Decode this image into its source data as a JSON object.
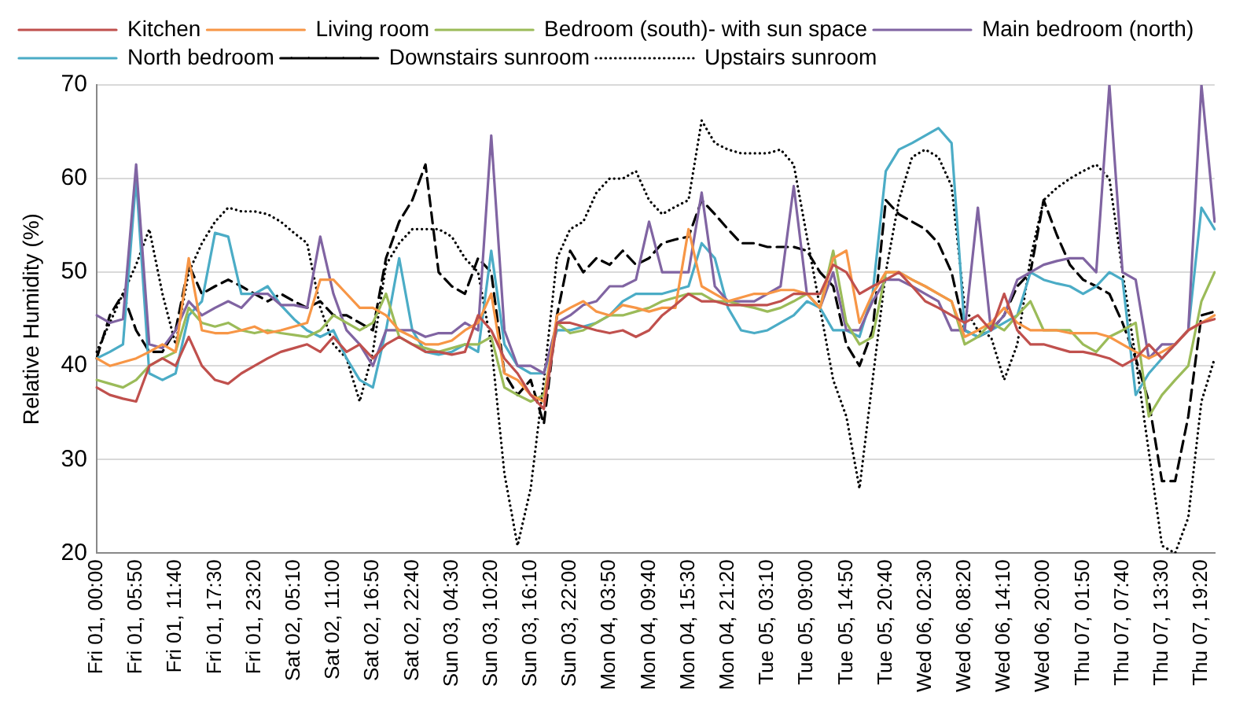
{
  "chart_data": {
    "type": "line",
    "ylabel": "Relative Humidity (%)",
    "ylim": [
      20,
      70
    ],
    "yticks": [
      20,
      30,
      40,
      50,
      60,
      70
    ],
    "grid": "y",
    "legend": "top",
    "marker": "none",
    "categories": [
      "Fri 01, 00:00",
      null,
      null,
      "Fri 01, 05:50",
      null,
      null,
      "Fri 01, 11:40",
      null,
      null,
      "Fri 01, 17:30",
      null,
      null,
      "Fri 01, 23:20",
      null,
      null,
      "Sat 02, 05:10",
      null,
      null,
      "Sat 02, 11:00",
      null,
      null,
      "Sat 02, 16:50",
      null,
      null,
      "Sat 02, 22:40",
      null,
      null,
      "Sun 03, 04:30",
      null,
      null,
      "Sun 03, 10:20",
      null,
      null,
      "Sun 03, 16:10",
      null,
      null,
      "Sun 03, 22:00",
      null,
      null,
      "Mon 04, 03:50",
      null,
      null,
      "Mon 04, 09:40",
      null,
      null,
      "Mon 04, 15:30",
      null,
      null,
      "Mon 04, 21:20",
      null,
      null,
      "Tue 05, 03:10",
      null,
      null,
      "Tue 05, 09:00",
      null,
      null,
      "Tue 05, 14:50",
      null,
      null,
      "Tue 05, 20:40",
      null,
      null,
      "Wed 06, 02:30",
      null,
      null,
      "Wed 06, 08:20",
      null,
      null,
      "Wed 06, 14:10",
      null,
      null,
      "Wed 06, 20:00",
      null,
      null,
      "Thu 07, 01:50",
      null,
      null,
      "Thu 07, 07:40",
      null,
      null,
      "Thu 07, 13:30",
      null,
      null,
      "Thu 07, 19:20",
      null
    ],
    "series": [
      {
        "name": "Kitchen",
        "color": "#c0504d",
        "values": [
          37.7,
          36.9,
          36.5,
          36.2,
          40,
          40.8,
          40,
          43.1,
          40,
          38.5,
          38.1,
          39.2,
          40,
          40.8,
          41.5,
          41.9,
          42.3,
          41.5,
          43.1,
          41.5,
          42.3,
          40.8,
          42.3,
          43.1,
          42.3,
          41.5,
          41.5,
          41.2,
          41.5,
          45.4,
          43.8,
          40.8,
          39.2,
          36.9,
          35.4,
          44.6,
          44.6,
          44.2,
          43.8,
          43.5,
          43.8,
          43.1,
          43.8,
          45.4,
          46.5,
          47.7,
          46.9,
          46.9,
          46.5,
          46.5,
          46.5,
          46.5,
          46.9,
          47.7,
          47.7,
          47.7,
          50.8,
          50,
          47.7,
          48.5,
          49.2,
          50,
          48.5,
          46.9,
          46.2,
          45.4,
          44.6,
          45.4,
          43.8,
          47.7,
          43.8,
          42.3,
          42.3,
          41.9,
          41.5,
          41.5,
          41.2,
          40.8,
          40,
          40.8,
          42.3,
          40.8,
          42.3,
          43.8,
          44.6,
          45
        ]
      },
      {
        "name": "Living room",
        "color": "#f79646",
        "values": [
          40.8,
          40,
          40.4,
          40.8,
          41.5,
          42.3,
          41.5,
          51.5,
          43.8,
          43.5,
          43.5,
          43.8,
          44.2,
          43.5,
          43.8,
          44.2,
          44.6,
          49.2,
          49.2,
          47.7,
          46.2,
          46.2,
          45.4,
          43.8,
          43.1,
          42.3,
          42.3,
          42.7,
          43.8,
          44.6,
          47.7,
          39.2,
          38.5,
          36.9,
          36.2,
          45.4,
          46.2,
          46.9,
          45.8,
          45.4,
          46.5,
          46.2,
          45.8,
          46.2,
          46.2,
          54.6,
          48.5,
          47.7,
          46.9,
          47.3,
          47.7,
          47.7,
          48.1,
          48.1,
          47.7,
          46.2,
          51.5,
          52.3,
          44.6,
          47.7,
          50,
          50,
          49.2,
          48.5,
          47.7,
          46.9,
          43.1,
          43.8,
          44.6,
          46.2,
          44.6,
          43.8,
          43.8,
          43.8,
          43.5,
          43.5,
          43.5,
          43.1,
          42.3,
          41.5,
          40.8,
          41.5,
          42.3,
          43.8,
          44.6,
          45.4
        ]
      },
      {
        "name": "Bedroom (south)- with sun space",
        "color": "#9bbb59",
        "values": [
          38.5,
          38.1,
          37.7,
          38.5,
          40,
          40.8,
          41.5,
          46.2,
          44.6,
          44.2,
          44.6,
          43.8,
          43.5,
          43.8,
          43.5,
          43.3,
          43.1,
          43.8,
          45.4,
          44.6,
          43.8,
          44.6,
          47.7,
          43.1,
          42.3,
          41.9,
          41.5,
          41.9,
          42.3,
          42.3,
          43.1,
          37.7,
          36.9,
          36.2,
          36.9,
          44.6,
          43.5,
          43.8,
          44.6,
          45.4,
          45.4,
          45.8,
          46.2,
          46.9,
          47.3,
          47.7,
          47.7,
          46.9,
          46.9,
          46.5,
          46.2,
          45.8,
          46.2,
          46.9,
          47.7,
          46.2,
          52.3,
          44.6,
          42.3,
          43.1,
          50,
          50,
          49.2,
          48.5,
          47.7,
          46.9,
          42.3,
          43.1,
          44.6,
          43.8,
          45.4,
          46.9,
          43.8,
          43.8,
          43.8,
          42.3,
          41.5,
          43.1,
          43.8,
          44.6,
          34.6,
          36.9,
          38.5,
          40,
          46.9,
          50
        ]
      },
      {
        "name": "Main bedroom (north)",
        "color": "#8064a2",
        "values": [
          45.4,
          44.6,
          45,
          61.5,
          42.3,
          41.9,
          43.8,
          46.9,
          45.4,
          46.2,
          46.9,
          46.2,
          47.7,
          47.7,
          46.5,
          46.5,
          46.2,
          53.8,
          47.7,
          43.8,
          42.3,
          40,
          43.8,
          43.8,
          43.8,
          43.1,
          43.5,
          43.5,
          44.6,
          43.8,
          64.6,
          43.8,
          40,
          40,
          39.2,
          44.6,
          45.4,
          46.5,
          46.9,
          48.5,
          48.5,
          49.2,
          55.4,
          50,
          50,
          50,
          58.5,
          48.5,
          46.9,
          46.9,
          46.9,
          47.7,
          48.5,
          59.2,
          47.7,
          46.2,
          50,
          43.8,
          43.8,
          46.9,
          49.2,
          49.2,
          48.5,
          47.7,
          46.9,
          43.8,
          43.8,
          56.9,
          43.8,
          45.4,
          49.2,
          50,
          50.8,
          51.2,
          51.5,
          51.5,
          50,
          70,
          50,
          49.2,
          40.8,
          42.3,
          42.3,
          43.8,
          70,
          55.4
        ]
      },
      {
        "name": "North bedroom",
        "color": "#4bacc6",
        "values": [
          40.8,
          41.5,
          42.3,
          60,
          39.2,
          38.5,
          39.2,
          45.4,
          46.9,
          54.2,
          53.8,
          47.7,
          47.7,
          48.5,
          46.5,
          45,
          43.8,
          43.1,
          43.8,
          40.8,
          38.5,
          37.7,
          43.8,
          51.5,
          43.8,
          41.5,
          41.2,
          41.5,
          42.3,
          41.5,
          52.3,
          42.3,
          40,
          39.2,
          39.2,
          43.8,
          43.8,
          44.2,
          44.6,
          45.4,
          46.9,
          47.7,
          47.7,
          47.7,
          48.1,
          48.5,
          53.1,
          51.5,
          46.2,
          43.8,
          43.5,
          43.8,
          44.6,
          45.4,
          46.9,
          46.2,
          43.8,
          43.8,
          43.1,
          47.7,
          60.8,
          63.1,
          63.8,
          64.6,
          65.4,
          63.8,
          43.8,
          43.1,
          43.8,
          44.6,
          45.4,
          50,
          49.2,
          48.8,
          48.5,
          47.7,
          48.5,
          50,
          49.2,
          36.9,
          39.2,
          40.8,
          42.3,
          43.8,
          56.9,
          54.6
        ]
      },
      {
        "name": "Downstairs sunroom",
        "color": "#000000",
        "line_style": "dashed",
        "values": [
          40.8,
          45.4,
          47.7,
          43.8,
          41.5,
          41.5,
          43.8,
          50.8,
          47.7,
          48.5,
          49.2,
          48.5,
          47.7,
          46.9,
          47.7,
          46.9,
          46.2,
          46.9,
          45.4,
          45.4,
          44.6,
          43.8,
          51.5,
          55.4,
          57.7,
          61.5,
          50,
          48.5,
          47.7,
          51.5,
          50,
          39.2,
          36.9,
          38.5,
          33.8,
          45.4,
          52.3,
          50,
          51.5,
          50.8,
          52.3,
          50.8,
          51.5,
          53.1,
          53.5,
          53.8,
          57.7,
          56.2,
          54.6,
          53.1,
          53.1,
          52.7,
          52.7,
          52.7,
          52.3,
          50,
          48.5,
          42.3,
          40,
          43.8,
          57.7,
          56.2,
          55.4,
          54.6,
          53.1,
          50,
          43.8,
          43.1,
          43.8,
          45.4,
          48.5,
          50,
          57.7,
          54,
          50.8,
          49.2,
          48.5,
          47.7,
          44.6,
          40.8,
          36.2,
          27.7,
          27.7,
          34.6,
          45.4,
          45.8
        ]
      },
      {
        "name": "Upstairs sunroom",
        "color": "#000000",
        "line_style": "dotted",
        "values": [
          41.5,
          44.6,
          47.7,
          50.8,
          54.6,
          47.7,
          42.3,
          50,
          53.1,
          55.4,
          56.9,
          56.5,
          56.5,
          56.2,
          55.4,
          54.2,
          53.1,
          46.2,
          42.3,
          40.8,
          36.2,
          41.5,
          50.8,
          53.1,
          54.6,
          54.6,
          54.6,
          53.8,
          51.5,
          50,
          42.3,
          28.5,
          20.8,
          26.9,
          38.5,
          51.5,
          54.6,
          55.4,
          58.5,
          60,
          60,
          60.8,
          57.7,
          56.2,
          57,
          57.7,
          66.2,
          63.8,
          63.1,
          62.7,
          62.7,
          62.7,
          63.1,
          61.5,
          53.8,
          46.2,
          38.5,
          34.6,
          26.9,
          38.5,
          50,
          57.7,
          62.3,
          63.1,
          62.3,
          59.2,
          46.2,
          43.8,
          43.1,
          38.5,
          42.3,
          51.5,
          57.7,
          59,
          60,
          60.8,
          61.5,
          60,
          50,
          40.8,
          30.8,
          20.8,
          20,
          23.8,
          36.2,
          40.8
        ]
      }
    ]
  }
}
